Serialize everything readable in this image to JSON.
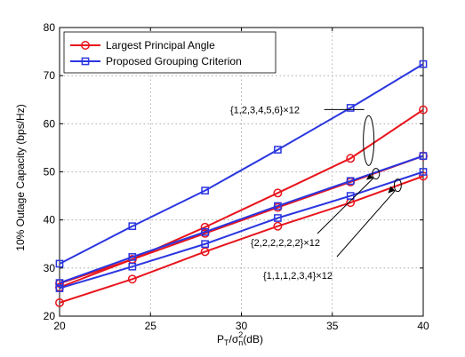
{
  "chart_data": {
    "type": "line",
    "xlabel_base": "P",
    "xlabel_sub1": "T",
    "xlabel_mid": "/σ",
    "xlabel_sup": "2",
    "xlabel_sub2": "n",
    "xlabel_tail": "(dB)",
    "ylabel": "10% Outage Capacity (bps/Hz)",
    "xlim": [
      20,
      40
    ],
    "ylim": [
      20,
      80
    ],
    "xticks": [
      20,
      25,
      30,
      35,
      40
    ],
    "yticks": [
      20,
      30,
      40,
      50,
      60,
      70,
      80
    ],
    "grid": true,
    "legend_position": "top-left",
    "legend": [
      {
        "label": "Largest Principal Angle",
        "color": "#e8141c",
        "marker": "circle"
      },
      {
        "label": "Proposed Grouping Criterion",
        "color": "#2b36e0",
        "marker": "square"
      }
    ],
    "x": [
      20,
      24,
      28,
      32,
      36,
      40
    ],
    "series": [
      {
        "name": "Largest Principal Angle",
        "group": "{1,2,3,4,5,6}×12",
        "color": "#e8141c",
        "marker": "circle",
        "values": [
          26.0,
          31.8,
          38.5,
          45.6,
          52.8,
          62.9
        ]
      },
      {
        "name": "Proposed Grouping Criterion",
        "group": "{1,2,3,4,5,6}×12",
        "color": "#2b36e0",
        "marker": "square",
        "values": [
          30.9,
          38.7,
          46.1,
          54.6,
          63.3,
          72.4
        ]
      },
      {
        "name": "Largest Principal Angle",
        "group": "{2,2,2,2,2,2}×12",
        "color": "#e8141c",
        "marker": "circle",
        "values": [
          26.8,
          31.8,
          37.2,
          42.6,
          47.9,
          53.3
        ]
      },
      {
        "name": "Proposed Grouping Criterion",
        "group": "{2,2,2,2,2,2}×12",
        "color": "#2b36e0",
        "marker": "square",
        "values": [
          26.9,
          32.3,
          37.5,
          42.9,
          48.1,
          53.3
        ]
      },
      {
        "name": "Largest Principal Angle",
        "group": "{1,1,1,2,3,4}×12",
        "color": "#e8141c",
        "marker": "circle",
        "values": [
          22.8,
          27.7,
          33.4,
          38.7,
          43.6,
          49.1
        ]
      },
      {
        "name": "Proposed Grouping Criterion",
        "group": "{1,1,1,2,3,4}×12",
        "color": "#2b36e0",
        "marker": "square",
        "values": [
          25.8,
          30.3,
          35.0,
          40.4,
          45.0,
          50.0
        ]
      }
    ],
    "annotations": [
      {
        "text": "{1,2,3,4,5,6}×12"
      },
      {
        "text": "{2,2,2,2,2,2}×12"
      },
      {
        "text": "{1,1,1,2,3,4}×12"
      }
    ]
  }
}
